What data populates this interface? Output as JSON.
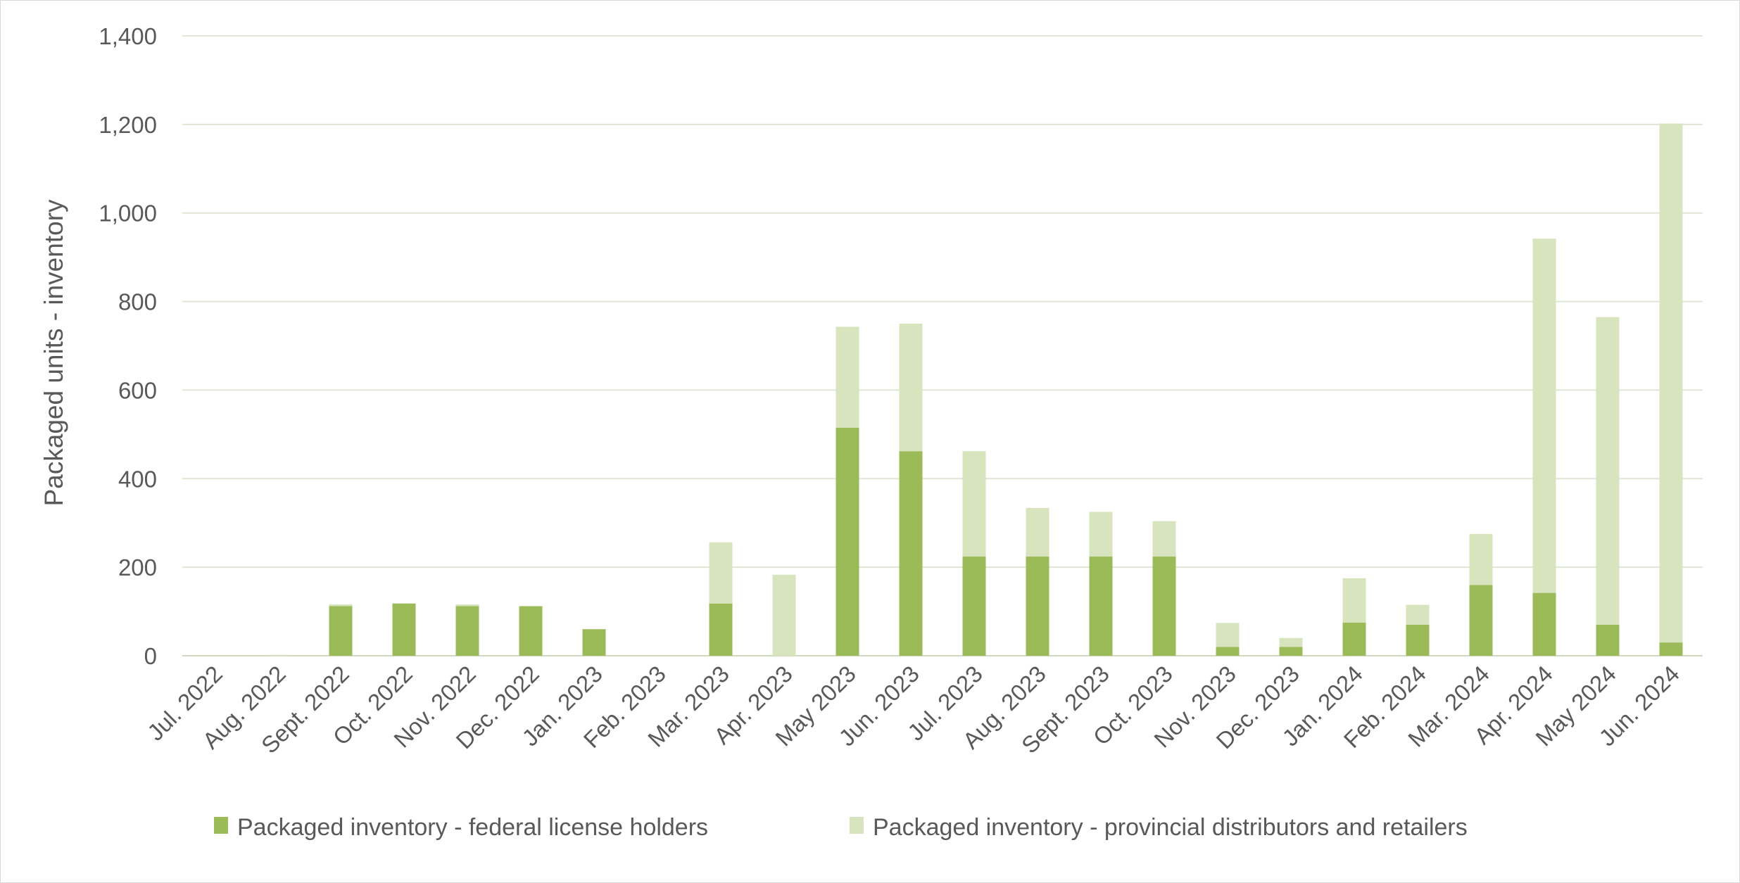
{
  "chart_data": {
    "type": "bar",
    "stacked": true,
    "title": "",
    "xlabel": "",
    "ylabel": "Packaged units - inventory",
    "ylim": [
      0,
      1400
    ],
    "yticks": [
      0,
      200,
      400,
      600,
      800,
      1000,
      1200,
      1400
    ],
    "ytick_labels": [
      "0",
      "200",
      "400",
      "600",
      "800",
      "1,000",
      "1,200",
      "1,400"
    ],
    "grid": "horizontal",
    "legend_position": "bottom",
    "categories": [
      "Jul. 2022",
      "Aug. 2022",
      "Sept. 2022",
      "Oct. 2022",
      "Nov. 2022",
      "Dec. 2022",
      "Jan. 2023",
      "Feb. 2023",
      "Mar. 2023",
      "Apr. 2023",
      "May 2023",
      "Jun. 2023",
      "Jul. 2023",
      "Aug. 2023",
      "Sept. 2023",
      "Oct. 2023",
      "Nov. 2023",
      "Dec. 2023",
      "Jan. 2024",
      "Feb. 2024",
      "Mar. 2024",
      "Apr. 2024",
      "May 2024",
      "Jun. 2024"
    ],
    "series": [
      {
        "name": "Packaged inventory - federal license holders",
        "color": "#9bbb59",
        "values": [
          0,
          0,
          112,
          118,
          112,
          112,
          60,
          0,
          118,
          0,
          515,
          462,
          224,
          224,
          224,
          224,
          20,
          20,
          75,
          70,
          160,
          142,
          70,
          30
        ]
      },
      {
        "name": "Packaged inventory - provincial distributors and retailers",
        "color": "#d7e4bd",
        "values": [
          0,
          2,
          4,
          0,
          4,
          0,
          0,
          0,
          138,
          183,
          228,
          288,
          238,
          110,
          101,
          80,
          54,
          20,
          100,
          45,
          115,
          800,
          695,
          1172
        ]
      }
    ]
  }
}
